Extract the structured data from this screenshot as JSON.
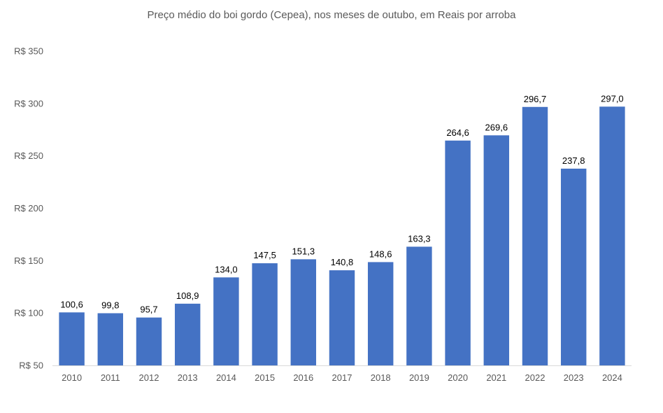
{
  "chart_data": {
    "type": "bar",
    "title": "Preço médio do boi gordo (Cepea), nos meses de outubo, em Reais por arroba",
    "xlabel": "",
    "ylabel": "",
    "categories": [
      "2010",
      "2011",
      "2012",
      "2013",
      "2014",
      "2015",
      "2016",
      "2017",
      "2018",
      "2019",
      "2020",
      "2021",
      "2022",
      "2023",
      "2024"
    ],
    "values": [
      100.6,
      99.8,
      95.7,
      108.9,
      134.0,
      147.5,
      151.3,
      140.8,
      148.6,
      163.3,
      264.6,
      269.6,
      296.7,
      237.8,
      297.0
    ],
    "value_labels": [
      "100,6",
      "99,8",
      "95,7",
      "108,9",
      "134,0",
      "147,5",
      "151,3",
      "140,8",
      "148,6",
      "163,3",
      "264,6",
      "269,6",
      "296,7",
      "237,8",
      "297,0"
    ],
    "ylim": [
      50,
      350
    ],
    "yticks": [
      50,
      100,
      150,
      200,
      250,
      300,
      350
    ],
    "ytick_labels": [
      "R$ 50",
      "R$ 100",
      "R$ 150",
      "R$ 200",
      "R$ 250",
      "R$ 300",
      "R$ 350"
    ],
    "grid": false,
    "legend": "none",
    "colors": {
      "bar": "#4472C4",
      "axis": "#D9D9D9"
    }
  }
}
